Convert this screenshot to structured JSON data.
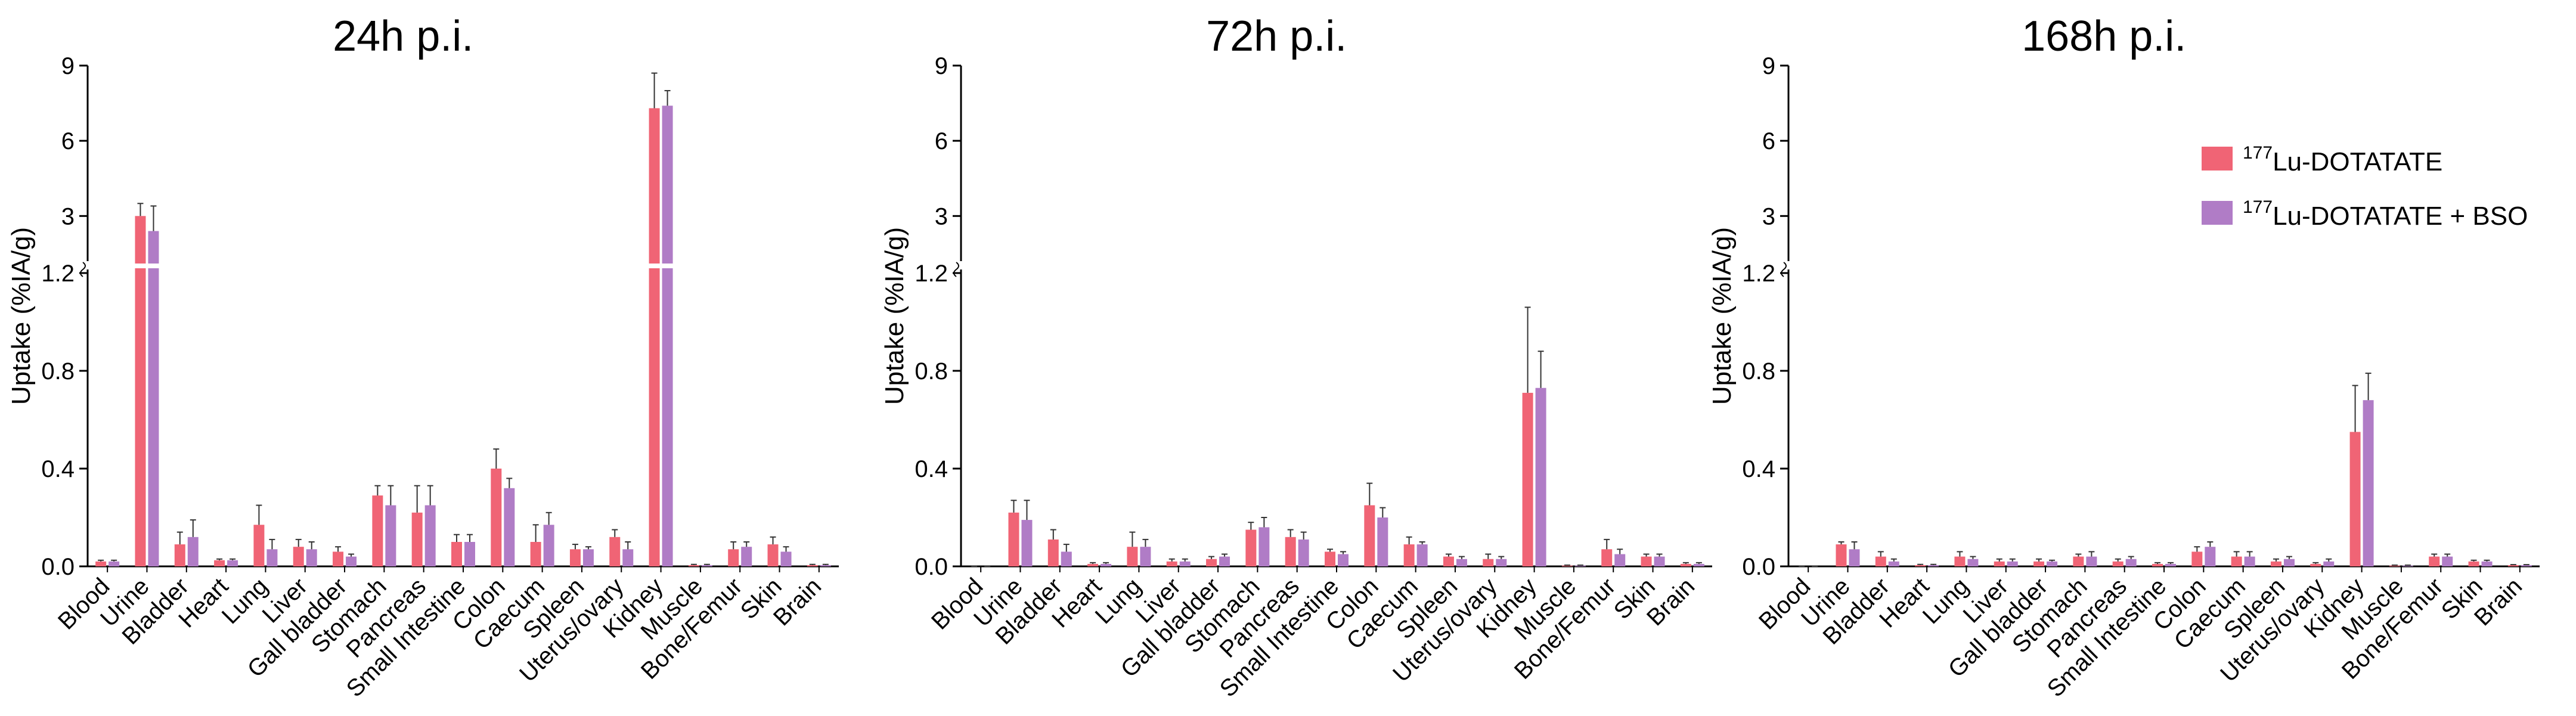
{
  "chart_data": [
    {
      "type": "bar",
      "title": "24h p.i.",
      "ylabel": "Uptake (%IA/g)",
      "xlabel": "",
      "y_axis_break": {
        "lower_range": [
          0,
          1.2
        ],
        "upper_range": [
          1.2,
          9
        ]
      },
      "lower_ticks": [
        "0.0",
        "0.4",
        "0.8",
        "1.2"
      ],
      "upper_ticks": [
        "3",
        "6",
        "9"
      ],
      "categories": [
        "Blood",
        "Urine",
        "Bladder",
        "Heart",
        "Lung",
        "Liver",
        "Gall bladder",
        "Stomach",
        "Pancreas",
        "Small Intestine",
        "Colon",
        "Caecum",
        "Spleen",
        "Uterus/ovary",
        "Kidney",
        "Muscle",
        "Bone/Femur",
        "Skin",
        "Brain"
      ],
      "series": [
        {
          "name": "177Lu-DOTATATE",
          "color": "#f06475",
          "values": [
            0.02,
            3.0,
            0.09,
            0.025,
            0.17,
            0.08,
            0.06,
            0.29,
            0.22,
            0.1,
            0.4,
            0.1,
            0.07,
            0.12,
            7.3,
            0.005,
            0.07,
            0.09,
            0.005
          ],
          "errors": [
            0.005,
            0.5,
            0.05,
            0.005,
            0.08,
            0.03,
            0.02,
            0.04,
            0.11,
            0.03,
            0.08,
            0.07,
            0.02,
            0.03,
            1.4,
            0.003,
            0.03,
            0.03,
            0.003
          ]
        },
        {
          "name": "177Lu-DOTATATE + BSO",
          "color": "#b07cc6",
          "values": [
            0.02,
            2.4,
            0.12,
            0.025,
            0.07,
            0.07,
            0.04,
            0.25,
            0.25,
            0.1,
            0.32,
            0.17,
            0.07,
            0.07,
            7.4,
            0.005,
            0.08,
            0.06,
            0.005
          ],
          "errors": [
            0.005,
            1.0,
            0.07,
            0.005,
            0.04,
            0.03,
            0.01,
            0.08,
            0.08,
            0.03,
            0.04,
            0.05,
            0.01,
            0.03,
            0.6,
            0.003,
            0.02,
            0.02,
            0.003
          ]
        }
      ]
    },
    {
      "type": "bar",
      "title": "72h p.i.",
      "ylabel": "Uptake (%IA/g)",
      "xlabel": "",
      "y_axis_break": {
        "lower_range": [
          0,
          1.2
        ],
        "upper_range": [
          1.2,
          9
        ]
      },
      "lower_ticks": [
        "0.0",
        "0.4",
        "0.8",
        "1.2"
      ],
      "upper_ticks": [
        "3",
        "6",
        "9"
      ],
      "categories": [
        "Blood",
        "Urine",
        "Bladder",
        "Heart",
        "Lung",
        "Liver",
        "Gall bladder",
        "Stomach",
        "Pancreas",
        "Small Intestine",
        "Colon",
        "Caecum",
        "Spleen",
        "Uterus/ovary",
        "Kidney",
        "Muscle",
        "Bone/Femur",
        "Skin",
        "Brain"
      ],
      "series": [
        {
          "name": "177Lu-DOTATATE",
          "color": "#f06475",
          "values": [
            0.0,
            0.22,
            0.11,
            0.01,
            0.08,
            0.02,
            0.03,
            0.15,
            0.12,
            0.06,
            0.25,
            0.09,
            0.04,
            0.03,
            0.71,
            0.003,
            0.07,
            0.04,
            0.01
          ],
          "errors": [
            0.0,
            0.05,
            0.04,
            0.005,
            0.06,
            0.01,
            0.01,
            0.03,
            0.03,
            0.01,
            0.09,
            0.03,
            0.01,
            0.02,
            0.35,
            0.002,
            0.04,
            0.01,
            0.005
          ]
        },
        {
          "name": "177Lu-DOTATATE + BSO",
          "color": "#b07cc6",
          "values": [
            0.0,
            0.19,
            0.06,
            0.01,
            0.08,
            0.02,
            0.04,
            0.16,
            0.11,
            0.05,
            0.2,
            0.09,
            0.03,
            0.03,
            0.73,
            0.003,
            0.05,
            0.04,
            0.01
          ],
          "errors": [
            0.0,
            0.08,
            0.03,
            0.005,
            0.03,
            0.01,
            0.01,
            0.04,
            0.03,
            0.01,
            0.04,
            0.01,
            0.01,
            0.01,
            0.15,
            0.002,
            0.02,
            0.01,
            0.005
          ]
        }
      ]
    },
    {
      "type": "bar",
      "title": "168h p.i.",
      "ylabel": "Uptake (%IA/g)",
      "xlabel": "",
      "y_axis_break": {
        "lower_range": [
          0,
          1.2
        ],
        "upper_range": [
          1.2,
          9
        ]
      },
      "lower_ticks": [
        "0.0",
        "0.4",
        "0.8",
        "1.2"
      ],
      "upper_ticks": [
        "3",
        "6",
        "9"
      ],
      "categories": [
        "Blood",
        "Urine",
        "Bladder",
        "Heart",
        "Lung",
        "Liver",
        "Gall bladder",
        "Stomach",
        "Pancreas",
        "Small Intestine",
        "Colon",
        "Caecum",
        "Spleen",
        "Uterus/ovary",
        "Kidney",
        "Muscle",
        "Bone/Femur",
        "Skin",
        "Brain"
      ],
      "series": [
        {
          "name": "177Lu-DOTATATE",
          "color": "#f06475",
          "values": [
            0.0,
            0.09,
            0.04,
            0.005,
            0.04,
            0.02,
            0.02,
            0.04,
            0.02,
            0.01,
            0.06,
            0.04,
            0.02,
            0.01,
            0.55,
            0.003,
            0.04,
            0.02,
            0.005
          ],
          "errors": [
            0.0,
            0.01,
            0.02,
            0.003,
            0.02,
            0.01,
            0.01,
            0.01,
            0.01,
            0.005,
            0.02,
            0.02,
            0.01,
            0.005,
            0.19,
            0.002,
            0.01,
            0.005,
            0.002
          ]
        },
        {
          "name": "177Lu-DOTATATE + BSO",
          "color": "#b07cc6",
          "values": [
            0.0,
            0.07,
            0.02,
            0.005,
            0.03,
            0.02,
            0.02,
            0.04,
            0.03,
            0.01,
            0.08,
            0.04,
            0.03,
            0.02,
            0.68,
            0.003,
            0.04,
            0.02,
            0.005
          ],
          "errors": [
            0.0,
            0.03,
            0.01,
            0.003,
            0.01,
            0.01,
            0.005,
            0.02,
            0.01,
            0.005,
            0.02,
            0.02,
            0.01,
            0.01,
            0.11,
            0.002,
            0.01,
            0.005,
            0.002
          ]
        }
      ]
    }
  ],
  "legend": {
    "position": "top-right",
    "items": [
      {
        "isotope_sup": "177",
        "label": "Lu-DOTATATE",
        "color": "#f06475"
      },
      {
        "isotope_sup": "177",
        "label": "Lu-DOTATATE + BSO",
        "color": "#b07cc6"
      }
    ]
  }
}
